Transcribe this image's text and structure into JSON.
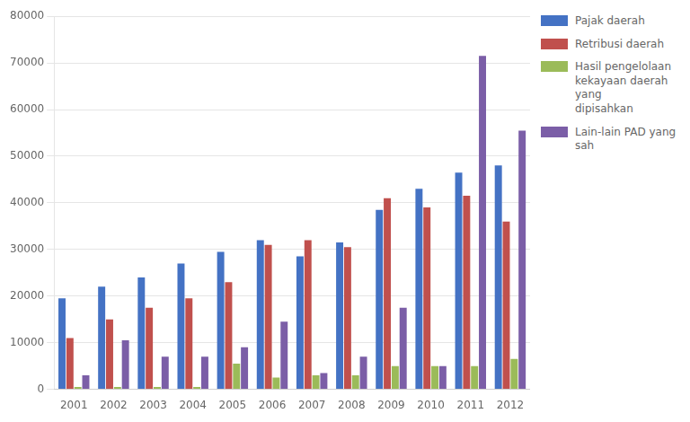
{
  "chart_data": {
    "type": "bar",
    "categories": [
      "2001",
      "2002",
      "2003",
      "2004",
      "2005",
      "2006",
      "2007",
      "2008",
      "2009",
      "2010",
      "2011",
      "2012"
    ],
    "series": [
      {
        "name": "Pajak daerah",
        "color": "#4472C4",
        "values": [
          19500,
          22000,
          24000,
          27000,
          29500,
          32000,
          28500,
          31500,
          38500,
          43000,
          46500,
          48000
        ]
      },
      {
        "name": "Retribusi daerah",
        "color": "#C0504D",
        "values": [
          11000,
          15000,
          17500,
          19500,
          23000,
          31000,
          32000,
          30500,
          41000,
          39000,
          41500,
          36000
        ]
      },
      {
        "name": "Hasil pengelolaan\nkekayaan daerah yang\ndipisahkan",
        "color": "#9BBB59",
        "values": [
          500,
          500,
          500,
          500,
          5500,
          2500,
          3000,
          3000,
          5000,
          5000,
          5000,
          6500
        ]
      },
      {
        "name": "Lain-lain PAD yang sah",
        "color": "#7B5EA7",
        "values": [
          3000,
          10500,
          7000,
          7000,
          9000,
          14500,
          3500,
          7000,
          17500,
          5000,
          71500,
          55500
        ]
      }
    ],
    "ylim": [
      0,
      80000
    ],
    "yticks": [
      0,
      10000,
      20000,
      30000,
      40000,
      50000,
      60000,
      70000,
      80000
    ],
    "grid": true,
    "legend": "upper right"
  }
}
